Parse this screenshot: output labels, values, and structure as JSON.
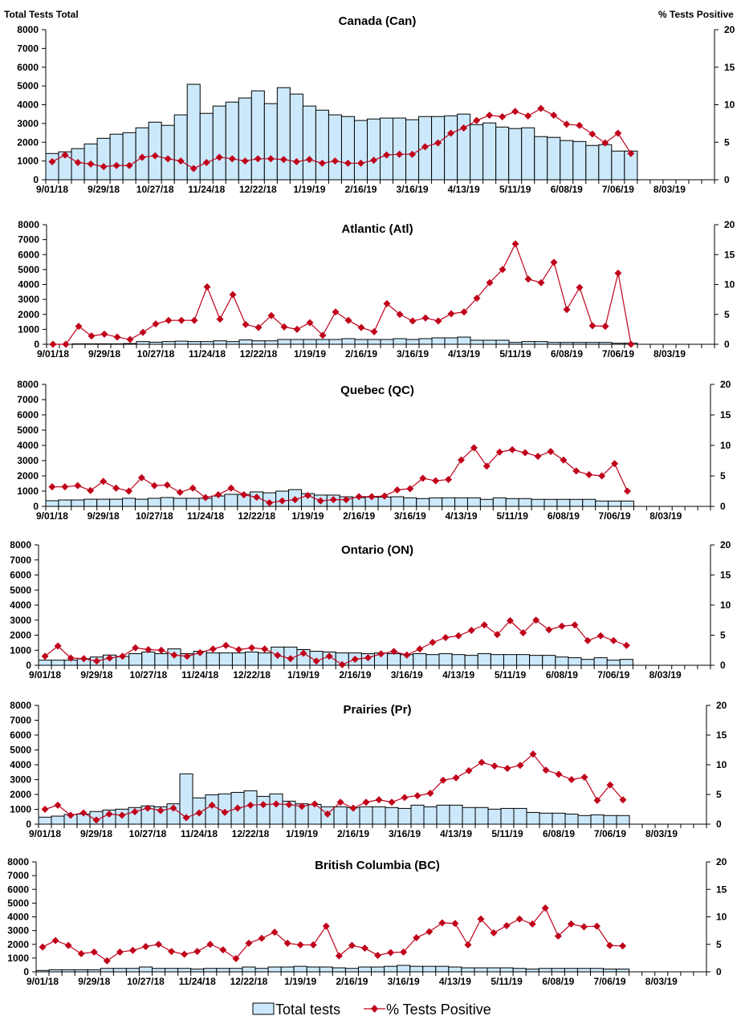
{
  "colors": {
    "bar_fill": "#cce9fb",
    "bar_stroke": "#000000",
    "line": "#c0001a"
  },
  "legend": {
    "bars": "Total tests",
    "line": "% Tests Positive",
    "placement": "bottom"
  },
  "chart_data": [
    {
      "type": "bar+line",
      "title": "Canada (Can)",
      "ylabel": "Total Tests Total",
      "y2label": "% Tests Positive",
      "ylim": [
        0,
        8000
      ],
      "y2lim": [
        0,
        20
      ],
      "grid": false,
      "x_ticks": [
        "9/01/18",
        "9/29/18",
        "10/27/18",
        "11/24/18",
        "12/22/18",
        "1/19/19",
        "2/16/19",
        "3/16/19",
        "4/13/19",
        "5/11/19",
        "6/08/19",
        "7/06/19",
        "8/03/19"
      ],
      "y_ticks": [
        0,
        1000,
        2000,
        3000,
        4000,
        5000,
        6000,
        7000,
        8000
      ],
      "y2_ticks": [
        0,
        5,
        10,
        15,
        20
      ],
      "x": [
        "9/01/18",
        "9/08/18",
        "9/15/18",
        "9/22/18",
        "9/29/18",
        "10/06/18",
        "10/13/18",
        "10/20/18",
        "10/27/18",
        "11/03/18",
        "11/10/18",
        "11/17/18",
        "11/24/18",
        "12/01/18",
        "12/08/18",
        "12/15/18",
        "12/22/18",
        "12/29/18",
        "1/05/19",
        "1/12/19",
        "1/19/19",
        "1/26/19",
        "2/02/19",
        "2/09/19",
        "2/16/19",
        "2/23/19",
        "3/02/19",
        "3/09/19",
        "3/16/19",
        "3/23/19",
        "3/30/19",
        "4/06/19",
        "4/13/19",
        "4/20/19",
        "4/27/19",
        "5/04/19",
        "5/11/19",
        "5/18/19",
        "5/25/19",
        "6/01/19",
        "6/08/19",
        "6/15/19",
        "6/22/19",
        "6/29/19",
        "7/06/19",
        "7/13/19"
      ],
      "series": [
        {
          "name": "Total tests",
          "values": [
            1400,
            1490,
            1660,
            1910,
            2210,
            2430,
            2510,
            2770,
            3070,
            2900,
            3460,
            5090,
            3540,
            3930,
            4140,
            4360,
            4740,
            4060,
            4910,
            4570,
            3930,
            3710,
            3460,
            3370,
            3160,
            3240,
            3290,
            3290,
            3200,
            3370,
            3370,
            3410,
            3500,
            2940,
            3030,
            2810,
            2730,
            2770,
            2300,
            2260,
            2090,
            2040,
            1830,
            1870,
            1530,
            1530
          ]
        },
        {
          "name": "% Tests Positive",
          "values": [
            2.4,
            3.3,
            2.3,
            2.1,
            1.75,
            1.9,
            1.9,
            3.0,
            3.2,
            2.8,
            2.5,
            1.5,
            2.3,
            3.0,
            2.8,
            2.5,
            2.8,
            2.8,
            2.7,
            2.4,
            2.7,
            2.2,
            2.5,
            2.2,
            2.2,
            2.6,
            3.3,
            3.4,
            3.4,
            4.4,
            4.9,
            6.2,
            6.9,
            7.9,
            8.6,
            8.4,
            9.1,
            8.5,
            9.5,
            8.6,
            7.4,
            7.25,
            6.1,
            4.9,
            6.2,
            3.5
          ]
        }
      ]
    },
    {
      "type": "bar+line",
      "title": "Atlantic (Atl)",
      "ylim": [
        0,
        8000
      ],
      "y2lim": [
        0,
        20
      ],
      "series": [
        {
          "name": "Total tests",
          "values": [
            0,
            0,
            30,
            30,
            30,
            30,
            50,
            180,
            140,
            180,
            210,
            180,
            180,
            230,
            180,
            290,
            230,
            230,
            320,
            320,
            320,
            320,
            320,
            375,
            320,
            320,
            320,
            375,
            320,
            375,
            430,
            430,
            480,
            270,
            270,
            270,
            125,
            180,
            180,
            125,
            125,
            125,
            125,
            125,
            70,
            70
          ]
        },
        {
          "name": "% Tests Positive",
          "values": [
            0,
            0,
            3.0,
            1.4,
            1.7,
            1.2,
            0.8,
            2.0,
            3.4,
            4.0,
            4.0,
            4.0,
            9.6,
            4.2,
            8.3,
            3.3,
            2.8,
            4.8,
            2.9,
            2.5,
            3.6,
            1.5,
            5.4,
            4.0,
            2.8,
            2.1,
            6.8,
            5.0,
            3.9,
            4.4,
            3.9,
            5.1,
            5.4,
            7.7,
            10.3,
            12.5,
            16.8,
            10.9,
            10.3,
            13.7,
            5.8,
            9.5,
            3.1,
            3.0,
            11.9,
            0
          ]
        }
      ]
    },
    {
      "type": "bar+line",
      "title": "Quebec (QC)",
      "ylim": [
        0,
        8000
      ],
      "y2lim": [
        0,
        20
      ],
      "series": [
        {
          "name": "Total tests",
          "values": [
            370,
            420,
            420,
            470,
            470,
            470,
            530,
            470,
            530,
            580,
            530,
            530,
            530,
            680,
            790,
            790,
            950,
            890,
            1000,
            1100,
            840,
            740,
            740,
            630,
            580,
            610,
            610,
            630,
            560,
            510,
            560,
            560,
            560,
            560,
            460,
            560,
            510,
            510,
            460,
            460,
            460,
            460,
            460,
            350,
            350,
            350
          ]
        },
        {
          "name": "% Tests Positive",
          "values": [
            3.2,
            3.2,
            3.4,
            2.6,
            4.1,
            3.0,
            2.5,
            4.7,
            3.4,
            3.5,
            2.3,
            3.0,
            1.45,
            1.9,
            3.0,
            1.9,
            1.5,
            0.6,
            0.9,
            1.1,
            1.8,
            0.9,
            1.1,
            1.1,
            1.6,
            1.6,
            1.7,
            2.7,
            2.9,
            4.6,
            4.2,
            4.4,
            7.6,
            9.6,
            6.6,
            8.9,
            9.3,
            8.8,
            8.2,
            9.0,
            7.6,
            5.8,
            5.2,
            5.0,
            7.0,
            2.5
          ]
        }
      ]
    },
    {
      "type": "bar+line",
      "title": "Ontario (ON)",
      "ylim": [
        0,
        8000
      ],
      "y2lim": [
        0,
        20
      ],
      "series": [
        {
          "name": "Total tests",
          "values": [
            340,
            340,
            340,
            430,
            550,
            680,
            590,
            770,
            880,
            770,
            1090,
            770,
            930,
            820,
            820,
            820,
            880,
            820,
            1210,
            1210,
            1040,
            930,
            880,
            820,
            820,
            770,
            820,
            770,
            710,
            770,
            710,
            770,
            710,
            660,
            770,
            710,
            710,
            710,
            660,
            660,
            550,
            500,
            390,
            500,
            340,
            390
          ]
        },
        {
          "name": "% Tests Positive",
          "values": [
            1.5,
            3.2,
            1.2,
            1.1,
            0.7,
            1.2,
            1.5,
            2.9,
            2.6,
            2.5,
            1.7,
            1.5,
            2.1,
            2.7,
            3.3,
            2.6,
            2.9,
            2.7,
            1.65,
            1.1,
            2.0,
            0.7,
            1.5,
            0.1,
            1.0,
            1.25,
            1.9,
            2.3,
            1.7,
            2.7,
            3.8,
            4.6,
            4.9,
            5.8,
            6.7,
            5.1,
            7.4,
            5.4,
            7.5,
            5.9,
            6.5,
            6.7,
            4.1,
            4.9,
            4.1,
            3.3
          ]
        }
      ]
    },
    {
      "type": "bar+line",
      "title": "Prairies (Pr)",
      "ylim": [
        0,
        8000
      ],
      "y2lim": [
        0,
        20
      ],
      "series": [
        {
          "name": "Total tests",
          "values": [
            470,
            540,
            650,
            680,
            850,
            950,
            1010,
            1120,
            1230,
            1170,
            1370,
            3390,
            1770,
            1980,
            2040,
            2140,
            2250,
            1870,
            2040,
            1550,
            1370,
            1330,
            1170,
            1170,
            1120,
            1170,
            1170,
            1120,
            1060,
            1280,
            1170,
            1280,
            1280,
            1120,
            1120,
            1010,
            1060,
            1060,
            790,
            740,
            740,
            680,
            580,
            630,
            580,
            580
          ]
        },
        {
          "name": "% Tests Positive",
          "values": [
            2.5,
            3.2,
            1.5,
            1.9,
            0.7,
            1.7,
            1.5,
            2.1,
            2.7,
            2.3,
            2.7,
            1.1,
            1.9,
            3.2,
            2.0,
            2.7,
            3.2,
            3.3,
            3.4,
            3.3,
            3.0,
            3.4,
            1.7,
            3.7,
            2.7,
            3.7,
            4.1,
            3.7,
            4.5,
            4.8,
            5.2,
            7.4,
            7.8,
            9.0,
            10.4,
            9.8,
            9.4,
            9.9,
            11.8,
            9.1,
            8.4,
            7.5,
            7.9,
            4.0,
            6.6,
            4.1
          ]
        }
      ]
    },
    {
      "type": "bar+line",
      "title": "British Columbia (BC)",
      "ylim": [
        0,
        8000
      ],
      "y2lim": [
        0,
        20
      ],
      "series": [
        {
          "name": "Total tests",
          "values": [
            100,
            150,
            150,
            150,
            150,
            250,
            250,
            250,
            350,
            250,
            250,
            250,
            200,
            250,
            250,
            250,
            350,
            250,
            350,
            350,
            400,
            350,
            350,
            290,
            250,
            350,
            350,
            400,
            470,
            400,
            400,
            400,
            350,
            290,
            290,
            290,
            290,
            250,
            200,
            250,
            250,
            250,
            250,
            250,
            200,
            200
          ]
        },
        {
          "name": "% Tests Positive",
          "values": [
            4.5,
            5.7,
            4.8,
            3.3,
            3.6,
            2.0,
            3.6,
            3.9,
            4.6,
            5.0,
            3.7,
            3.2,
            3.7,
            5.0,
            4.0,
            2.4,
            5.2,
            6.1,
            7.2,
            5.2,
            4.9,
            4.9,
            8.3,
            2.9,
            4.8,
            4.3,
            3.0,
            3.5,
            3.6,
            6.2,
            7.3,
            8.9,
            8.8,
            4.9,
            9.6,
            7.1,
            8.4,
            9.6,
            8.7,
            11.6,
            6.5,
            8.7,
            8.2,
            8.3,
            4.8,
            4.7
          ]
        }
      ]
    }
  ]
}
